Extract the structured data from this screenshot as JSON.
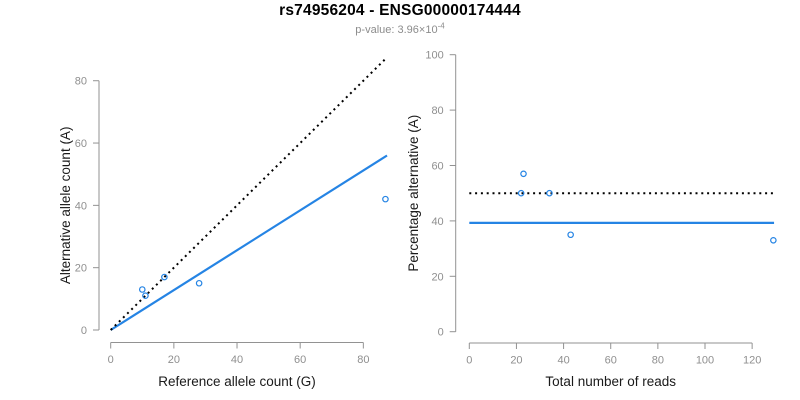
{
  "header": {
    "title": "rs74956204 - ENSG00000174444",
    "subtitle": {
      "text": "p-value: 3.96×10",
      "superscript": "-4"
    }
  },
  "style": {
    "accent_blue": "#2584e4",
    "dotted_black": "#000000",
    "axis_color": "#929292",
    "tick_label_color": "#8f8f8f",
    "axis_title_color": "#1a1a1a",
    "marker": "open-circle"
  },
  "chart_data": [
    {
      "type": "scatter",
      "name": "allele-counts-plot",
      "xlabel": "Reference allele count (G)",
      "ylabel": "Alternative allele count (A)",
      "xlim": [
        0,
        88
      ],
      "ylim": [
        0,
        88
      ],
      "xticks": [
        0,
        20,
        40,
        60,
        80
      ],
      "yticks": [
        0,
        20,
        40,
        60,
        80
      ],
      "grid": false,
      "legend": "none",
      "points": [
        {
          "x": 10,
          "y": 13
        },
        {
          "x": 11,
          "y": 11
        },
        {
          "x": 17,
          "y": 17
        },
        {
          "x": 28,
          "y": 15
        },
        {
          "x": 87,
          "y": 42
        }
      ],
      "lines": [
        {
          "name": "identity-line",
          "style": "dotted",
          "color": "#000000",
          "x1": 0,
          "y1": 0,
          "x2": 87.5,
          "y2": 87.5
        },
        {
          "name": "fitted-ratio-line",
          "style": "solid",
          "color": "#2584e4",
          "x1": 0,
          "y1": 0,
          "x2": 87.5,
          "y2": 56
        }
      ]
    },
    {
      "type": "scatter",
      "name": "percentage-alternative-plot",
      "xlabel": "Total number of reads",
      "ylabel": "Percentage alternative (A)",
      "xlim": [
        0,
        130
      ],
      "ylim": [
        0,
        100
      ],
      "xticks": [
        0,
        20,
        40,
        60,
        80,
        100,
        120
      ],
      "yticks": [
        0,
        20,
        40,
        60,
        80,
        100
      ],
      "grid": false,
      "legend": "none",
      "points": [
        {
          "x": 23,
          "y": 57
        },
        {
          "x": 22,
          "y": 50
        },
        {
          "x": 34,
          "y": 50
        },
        {
          "x": 43,
          "y": 35
        },
        {
          "x": 129,
          "y": 33
        }
      ],
      "lines": [
        {
          "name": "expected-50-percent-line",
          "style": "dotted",
          "color": "#000000",
          "x1": 0,
          "y1": 50,
          "x2": 129,
          "y2": 50
        },
        {
          "name": "observed-percentage-line",
          "style": "solid",
          "color": "#2584e4",
          "x1": 0,
          "y1": 39.3,
          "x2": 129.3,
          "y2": 39.3
        }
      ]
    }
  ]
}
